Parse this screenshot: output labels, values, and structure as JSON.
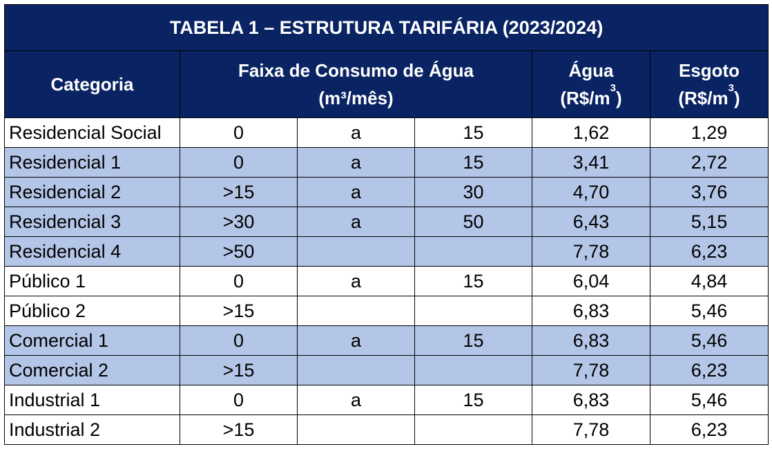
{
  "table": {
    "title": "TABELA 1 – ESTRUTURA TARIFÁRIA (2023/2024)",
    "headers": {
      "categoria": "Categoria",
      "faixa_line1": "Faixa de Consumo de Água",
      "faixa_line2_pre": "(m",
      "faixa_line2_sup": "³",
      "faixa_line2_post": "/mês)",
      "agua_line1": "Água",
      "agua_line2_pre": "(R$/m",
      "agua_line2_sup": "3",
      "agua_line2_post": ")",
      "esgoto_line1": "Esgoto",
      "esgoto_line2_pre": "(R$/m",
      "esgoto_line2_sup": "3",
      "esgoto_line2_post": ")"
    },
    "rows": [
      {
        "categoria": "Residencial Social",
        "de": "0",
        "a": "a",
        "ate": "15",
        "agua": "1,62",
        "esgoto": "1,29",
        "shade": false
      },
      {
        "categoria": "Residencial 1",
        "de": "0",
        "a": "a",
        "ate": "15",
        "agua": "3,41",
        "esgoto": "2,72",
        "shade": true
      },
      {
        "categoria": "Residencial 2",
        "de": ">15",
        "a": "a",
        "ate": "30",
        "agua": "4,70",
        "esgoto": "3,76",
        "shade": true
      },
      {
        "categoria": "Residencial 3",
        "de": ">30",
        "a": "a",
        "ate": "50",
        "agua": "6,43",
        "esgoto": "5,15",
        "shade": true
      },
      {
        "categoria": "Residencial 4",
        "de": ">50",
        "a": "",
        "ate": "",
        "agua": "7,78",
        "esgoto": "6,23",
        "shade": true
      },
      {
        "categoria": "Público 1",
        "de": "0",
        "a": "a",
        "ate": "15",
        "agua": "6,04",
        "esgoto": "4,84",
        "shade": false
      },
      {
        "categoria": "Público 2",
        "de": ">15",
        "a": "",
        "ate": "",
        "agua": "6,83",
        "esgoto": "5,46",
        "shade": false
      },
      {
        "categoria": "Comercial 1",
        "de": "0",
        "a": "a",
        "ate": "15",
        "agua": "6,83",
        "esgoto": "5,46",
        "shade": true
      },
      {
        "categoria": "Comercial 2",
        "de": ">15",
        "a": "",
        "ate": "",
        "agua": "7,78",
        "esgoto": "6,23",
        "shade": true
      },
      {
        "categoria": "Industrial 1",
        "de": "0",
        "a": "a",
        "ate": "15",
        "agua": "6,83",
        "esgoto": "5,46",
        "shade": false
      },
      {
        "categoria": "Industrial 2",
        "de": ">15",
        "a": "",
        "ate": "",
        "agua": "7,78",
        "esgoto": "6,23",
        "shade": false
      }
    ],
    "colors": {
      "header_bg": "#0a2463",
      "shade_bg": "#b4c6e7",
      "plain_bg": "#ffffff"
    }
  }
}
